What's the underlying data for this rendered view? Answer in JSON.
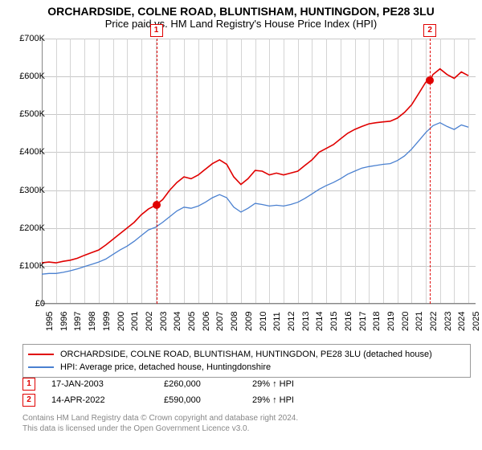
{
  "title": "ORCHARDSIDE, COLNE ROAD, BLUNTISHAM, HUNTINGDON, PE28 3LU",
  "subtitle": "Price paid vs. HM Land Registry's House Price Index (HPI)",
  "chart": {
    "type": "line",
    "background_color": "#ffffff",
    "grid_color": "#c8c8c8",
    "axis_color": "#888888",
    "ylim": [
      0,
      700000
    ],
    "ytick_step": 100000,
    "ytick_labels": [
      "£0",
      "£100K",
      "£200K",
      "£300K",
      "£400K",
      "£500K",
      "£600K",
      "£700K"
    ],
    "xlim": [
      1995,
      2025.5
    ],
    "xtick_years": [
      1995,
      1996,
      1997,
      1998,
      1999,
      2000,
      2001,
      2002,
      2003,
      2004,
      2005,
      2006,
      2007,
      2008,
      2009,
      2010,
      2011,
      2012,
      2013,
      2014,
      2015,
      2016,
      2017,
      2018,
      2019,
      2020,
      2021,
      2022,
      2023,
      2024,
      2025
    ],
    "label_fontsize": 11,
    "series": [
      {
        "name": "ORCHARDSIDE, COLNE ROAD, BLUNTISHAM, HUNTINGDON, PE28 3LU (detached house)",
        "color": "#e00000",
        "line_width": 1.6,
        "points": [
          [
            1995,
            108000
          ],
          [
            1995.5,
            110000
          ],
          [
            1996,
            108000
          ],
          [
            1996.5,
            112000
          ],
          [
            1997,
            115000
          ],
          [
            1997.5,
            120000
          ],
          [
            1998,
            128000
          ],
          [
            1998.5,
            135000
          ],
          [
            1999,
            142000
          ],
          [
            1999.5,
            155000
          ],
          [
            2000,
            170000
          ],
          [
            2000.5,
            185000
          ],
          [
            2001,
            200000
          ],
          [
            2001.5,
            215000
          ],
          [
            2002,
            235000
          ],
          [
            2002.5,
            250000
          ],
          [
            2003,
            260000
          ],
          [
            2003.5,
            275000
          ],
          [
            2004,
            300000
          ],
          [
            2004.5,
            320000
          ],
          [
            2005,
            335000
          ],
          [
            2005.5,
            330000
          ],
          [
            2006,
            340000
          ],
          [
            2006.5,
            355000
          ],
          [
            2007,
            370000
          ],
          [
            2007.5,
            380000
          ],
          [
            2008,
            368000
          ],
          [
            2008.5,
            335000
          ],
          [
            2009,
            315000
          ],
          [
            2009.5,
            330000
          ],
          [
            2010,
            352000
          ],
          [
            2010.5,
            350000
          ],
          [
            2011,
            340000
          ],
          [
            2011.5,
            345000
          ],
          [
            2012,
            340000
          ],
          [
            2012.5,
            345000
          ],
          [
            2013,
            350000
          ],
          [
            2013.5,
            365000
          ],
          [
            2014,
            380000
          ],
          [
            2014.5,
            400000
          ],
          [
            2015,
            410000
          ],
          [
            2015.5,
            420000
          ],
          [
            2016,
            435000
          ],
          [
            2016.5,
            450000
          ],
          [
            2017,
            460000
          ],
          [
            2017.5,
            468000
          ],
          [
            2018,
            475000
          ],
          [
            2018.5,
            478000
          ],
          [
            2019,
            480000
          ],
          [
            2019.5,
            482000
          ],
          [
            2020,
            490000
          ],
          [
            2020.5,
            505000
          ],
          [
            2021,
            525000
          ],
          [
            2021.5,
            555000
          ],
          [
            2022,
            585000
          ],
          [
            2022.3,
            590000
          ],
          [
            2022.5,
            605000
          ],
          [
            2023,
            620000
          ],
          [
            2023.5,
            605000
          ],
          [
            2024,
            595000
          ],
          [
            2024.5,
            612000
          ],
          [
            2025,
            602000
          ]
        ]
      },
      {
        "name": "HPI: Average price, detached house, Huntingdonshire",
        "color": "#4a80d0",
        "line_width": 1.3,
        "points": [
          [
            1995,
            78000
          ],
          [
            1995.5,
            80000
          ],
          [
            1996,
            80000
          ],
          [
            1996.5,
            83000
          ],
          [
            1997,
            87000
          ],
          [
            1997.5,
            92000
          ],
          [
            1998,
            98000
          ],
          [
            1998.5,
            104000
          ],
          [
            1999,
            110000
          ],
          [
            1999.5,
            118000
          ],
          [
            2000,
            130000
          ],
          [
            2000.5,
            142000
          ],
          [
            2001,
            152000
          ],
          [
            2001.5,
            165000
          ],
          [
            2002,
            180000
          ],
          [
            2002.5,
            195000
          ],
          [
            2003,
            202000
          ],
          [
            2003.5,
            215000
          ],
          [
            2004,
            230000
          ],
          [
            2004.5,
            245000
          ],
          [
            2005,
            255000
          ],
          [
            2005.5,
            252000
          ],
          [
            2006,
            258000
          ],
          [
            2006.5,
            268000
          ],
          [
            2007,
            280000
          ],
          [
            2007.5,
            288000
          ],
          [
            2008,
            280000
          ],
          [
            2008.5,
            255000
          ],
          [
            2009,
            242000
          ],
          [
            2009.5,
            252000
          ],
          [
            2010,
            265000
          ],
          [
            2010.5,
            262000
          ],
          [
            2011,
            258000
          ],
          [
            2011.5,
            260000
          ],
          [
            2012,
            258000
          ],
          [
            2012.5,
            262000
          ],
          [
            2013,
            268000
          ],
          [
            2013.5,
            278000
          ],
          [
            2014,
            290000
          ],
          [
            2014.5,
            302000
          ],
          [
            2015,
            312000
          ],
          [
            2015.5,
            320000
          ],
          [
            2016,
            330000
          ],
          [
            2016.5,
            342000
          ],
          [
            2017,
            350000
          ],
          [
            2017.5,
            358000
          ],
          [
            2018,
            362000
          ],
          [
            2018.5,
            365000
          ],
          [
            2019,
            368000
          ],
          [
            2019.5,
            370000
          ],
          [
            2020,
            378000
          ],
          [
            2020.5,
            390000
          ],
          [
            2021,
            408000
          ],
          [
            2021.5,
            430000
          ],
          [
            2022,
            452000
          ],
          [
            2022.5,
            470000
          ],
          [
            2023,
            478000
          ],
          [
            2023.5,
            468000
          ],
          [
            2024,
            460000
          ],
          [
            2024.5,
            472000
          ],
          [
            2025,
            466000
          ]
        ]
      }
    ],
    "markers": [
      {
        "n": "1",
        "date": "17-JAN-2003",
        "year": 2003.05,
        "price": 260000,
        "pct": "29% ↑ HPI",
        "color": "#e00000"
      },
      {
        "n": "2",
        "date": "14-APR-2022",
        "year": 2022.29,
        "price": 590000,
        "pct": "29% ↑ HPI",
        "color": "#e00000"
      }
    ],
    "price_labels": {
      "260000": "£260,000",
      "590000": "£590,000"
    }
  },
  "footnote_l1": "Contains HM Land Registry data © Crown copyright and database right 2024.",
  "footnote_l2": "This data is licensed under the Open Government Licence v3.0."
}
